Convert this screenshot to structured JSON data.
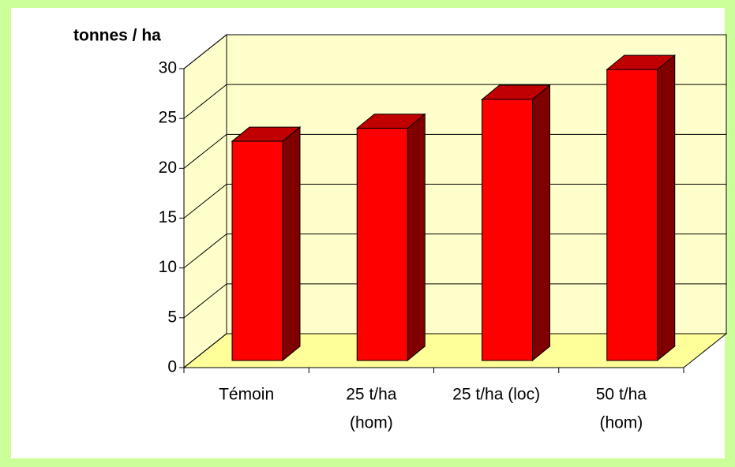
{
  "chart_data": {
    "type": "bar3d",
    "y_label": "tonnes / ha",
    "categories": [
      [
        "Témoin"
      ],
      [
        "25 t/ha",
        "(hom)"
      ],
      [
        "25 t/ha (loc)"
      ],
      [
        "50 t/ha",
        "(hom)"
      ]
    ],
    "values": [
      22,
      23.3,
      26.2,
      29.2
    ],
    "color": "#ff0000",
    "top_color": "#c00000",
    "side_color": "#800000",
    "wall_color": "#ffffcc",
    "floor_color": "#ffff99",
    "ylim": [
      0,
      30
    ],
    "yticks": [
      0,
      5,
      10,
      15,
      20,
      25,
      30
    ],
    "grid": true
  }
}
